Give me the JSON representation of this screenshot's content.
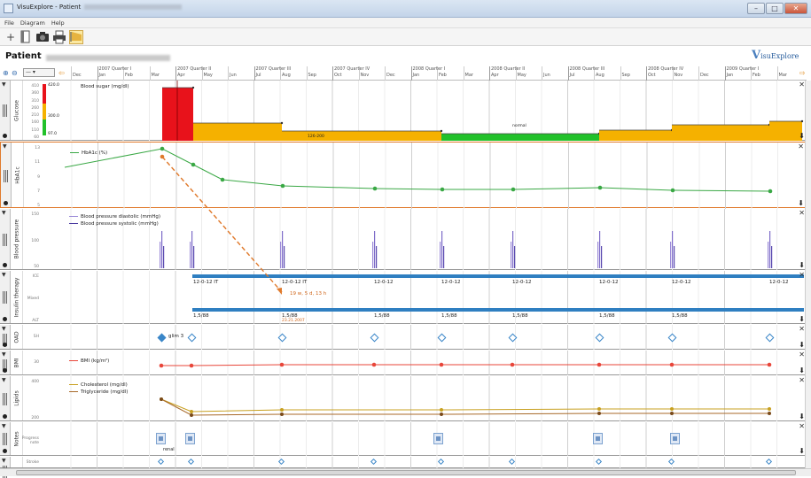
{
  "window": {
    "title": "VisuExplore - Patient",
    "min": "–",
    "max": "□",
    "close": "✕"
  },
  "menu": [
    "File",
    "Diagram",
    "Help"
  ],
  "toolbar": {
    "icons": [
      "plus-icon",
      "document-icon",
      "camera-icon",
      "printer-icon",
      "chart-icon"
    ],
    "add": "+"
  },
  "patient": {
    "label": "Patient"
  },
  "logo": {
    "text": "isuExplore",
    "mark": "V"
  },
  "timeline": {
    "zoom_select": "—  ▾",
    "quarters": [
      "2007 Quarter I",
      "2007 Quarter II",
      "2007 Quarter III",
      "2007 Quarter IV",
      "2008 Quarter I",
      "2008 Quarter II",
      "2008 Quarter III",
      "2008 Quarter IV",
      "2009 Quarter I"
    ],
    "months": [
      "Dec",
      "Jan",
      "Feb",
      "Mar",
      "Apr",
      "May",
      "Jun",
      "Jul",
      "Aug",
      "Sep",
      "Oct",
      "Nov",
      "Dec",
      "Jan",
      "Feb",
      "Mar",
      "Apr",
      "May",
      "Jun",
      "Jul",
      "Aug",
      "Sep",
      "Oct",
      "Nov",
      "Dec",
      "Jan",
      "Feb",
      "Mar"
    ]
  },
  "lanes": {
    "glucose": {
      "title": "Glucose",
      "legend": "Blood sugar (mg/dl)",
      "ylabels": [
        "410",
        "360",
        "310",
        "260",
        "210",
        "160",
        "110",
        "60"
      ],
      "scale": [
        "420.0",
        "300.0",
        "97.0"
      ],
      "labels": [
        "126-200",
        "normal"
      ],
      "colors": {
        "high": "#e8121b",
        "mid": "#f5b100",
        "normal": "#22c12a"
      }
    },
    "hba1c": {
      "title": "HbA1c",
      "legend": "HbA1c (%)",
      "ylabels": [
        "13",
        "11",
        "9",
        "7",
        "5"
      ],
      "color": "#3aa845"
    },
    "bp": {
      "title": "Blood pressure",
      "legend": [
        "Blood pressure diastolic (mmHg)",
        "Blood pressure systolic (mmHg)"
      ],
      "ylabels": [
        "150",
        "100",
        "50"
      ],
      "color": "#7d6bc8"
    },
    "insulin": {
      "title": "Insulin therapy",
      "ylabels": [
        "ICE",
        "Mixed",
        "ALT"
      ],
      "ice_labels": [
        "12-0-12 IT",
        "12-0-12 IT",
        "12-0-12",
        "12-0-12",
        "12-0-12",
        "12-0-12",
        "12-0-12",
        "12-0-12"
      ],
      "alt_labels": [
        "1,5/88",
        "1,5/88",
        "1,5/88",
        "1,5/88",
        "1,5/88",
        "1,5/88",
        "1,5/88"
      ],
      "tooltip": "19 w, 5 d, 13 h",
      "tooltip_date": "23.21.2007",
      "bar_color": "#2f7fc1"
    },
    "oad": {
      "title": "OAD",
      "ylabels": [
        "SH"
      ],
      "label": "glim 3"
    },
    "bmi": {
      "title": "BMI",
      "legend": "BMI (kg/m²)",
      "ylabels": [
        "30"
      ],
      "color": "#e8463a"
    },
    "lipids": {
      "title": "Lipids",
      "legend": [
        "Cholesterol (mg/dl)",
        "Triglyceride (mg/dl)"
      ],
      "ylabels": [
        "400",
        "200"
      ],
      "colors": [
        "#c8a020",
        "#a86a2a"
      ]
    },
    "notes": {
      "title": "Notes",
      "ylabels": [
        "Progress note"
      ],
      "note_label": "renal"
    },
    "bottom": {
      "ylabels": [
        "Stroke"
      ]
    }
  }
}
